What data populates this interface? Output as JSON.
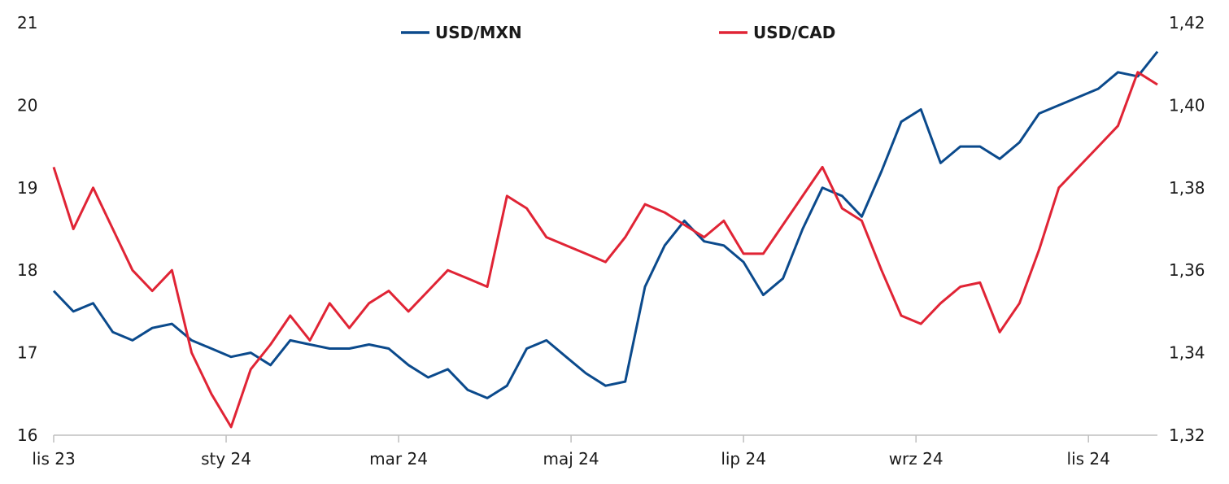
{
  "chart_data": {
    "type": "line",
    "title": "",
    "xlabel": "",
    "ylabel": "",
    "x_ticks": [
      "lis 23",
      "sty 24",
      "mar 24",
      "maj 24",
      "lip 24",
      "wrz 24",
      "lis 24"
    ],
    "y_left": {
      "ticks": [
        "16",
        "17",
        "18",
        "19",
        "20",
        "21"
      ],
      "range": [
        16,
        21
      ]
    },
    "y_right": {
      "ticks": [
        "1,32",
        "1,34",
        "1,36",
        "1,38",
        "1,40",
        "1,42"
      ],
      "range": [
        1.32,
        1.42
      ]
    },
    "grid": false,
    "legend_position": "top-center",
    "series": [
      {
        "name": "USD/MXN",
        "axis": "left",
        "color": "#0b4a8c",
        "x": [
          "2023-11-01",
          "2023-11-08",
          "2023-11-15",
          "2023-11-22",
          "2023-11-29",
          "2023-12-06",
          "2023-12-13",
          "2023-12-20",
          "2023-12-27",
          "2024-01-03",
          "2024-01-10",
          "2024-01-17",
          "2024-01-24",
          "2024-01-31",
          "2024-02-07",
          "2024-02-14",
          "2024-02-21",
          "2024-02-28",
          "2024-03-06",
          "2024-03-13",
          "2024-03-20",
          "2024-03-27",
          "2024-04-03",
          "2024-04-10",
          "2024-04-17",
          "2024-04-24",
          "2024-05-01",
          "2024-05-08",
          "2024-05-15",
          "2024-05-22",
          "2024-05-29",
          "2024-06-05",
          "2024-06-12",
          "2024-06-19",
          "2024-06-26",
          "2024-07-03",
          "2024-07-10",
          "2024-07-17",
          "2024-07-24",
          "2024-07-31",
          "2024-08-07",
          "2024-08-14",
          "2024-08-21",
          "2024-08-28",
          "2024-09-04",
          "2024-09-11",
          "2024-09-18",
          "2024-09-25",
          "2024-10-02",
          "2024-10-09",
          "2024-10-16",
          "2024-10-23",
          "2024-10-30",
          "2024-11-06",
          "2024-11-13",
          "2024-11-20",
          "2024-11-27"
        ],
        "values": [
          17.75,
          17.5,
          17.6,
          17.25,
          17.15,
          17.3,
          17.35,
          17.15,
          17.05,
          16.95,
          17.0,
          16.85,
          17.15,
          17.1,
          17.05,
          17.05,
          17.1,
          17.05,
          16.85,
          16.7,
          16.8,
          16.55,
          16.45,
          16.6,
          17.05,
          17.15,
          16.95,
          16.75,
          16.6,
          16.65,
          17.8,
          18.3,
          18.6,
          18.35,
          18.3,
          18.1,
          17.7,
          17.9,
          18.5,
          19.0,
          18.9,
          18.65,
          19.2,
          19.8,
          19.95,
          19.3,
          19.5,
          19.5,
          19.35,
          19.55,
          19.9,
          20.0,
          20.1,
          20.2,
          20.4,
          20.35,
          20.65
        ]
      },
      {
        "name": "USD/CAD",
        "axis": "right",
        "color": "#e02435",
        "x": [
          "2023-11-01",
          "2023-11-08",
          "2023-11-15",
          "2023-11-22",
          "2023-11-29",
          "2023-12-06",
          "2023-12-13",
          "2023-12-20",
          "2023-12-27",
          "2024-01-03",
          "2024-01-10",
          "2024-01-17",
          "2024-01-24",
          "2024-01-31",
          "2024-02-07",
          "2024-02-14",
          "2024-02-21",
          "2024-02-28",
          "2024-03-06",
          "2024-03-13",
          "2024-03-20",
          "2024-03-27",
          "2024-04-03",
          "2024-04-10",
          "2024-04-17",
          "2024-04-24",
          "2024-05-01",
          "2024-05-08",
          "2024-05-15",
          "2024-05-22",
          "2024-05-29",
          "2024-06-05",
          "2024-06-12",
          "2024-06-19",
          "2024-06-26",
          "2024-07-03",
          "2024-07-10",
          "2024-07-17",
          "2024-07-24",
          "2024-07-31",
          "2024-08-07",
          "2024-08-14",
          "2024-08-21",
          "2024-08-28",
          "2024-09-04",
          "2024-09-11",
          "2024-09-18",
          "2024-09-25",
          "2024-10-02",
          "2024-10-09",
          "2024-10-16",
          "2024-10-23",
          "2024-10-30",
          "2024-11-06",
          "2024-11-13",
          "2024-11-20",
          "2024-11-27"
        ],
        "values": [
          1.385,
          1.37,
          1.38,
          1.37,
          1.36,
          1.355,
          1.36,
          1.34,
          1.33,
          1.322,
          1.336,
          1.342,
          1.349,
          1.343,
          1.352,
          1.346,
          1.352,
          1.355,
          1.35,
          1.355,
          1.36,
          1.358,
          1.356,
          1.378,
          1.375,
          1.368,
          1.366,
          1.364,
          1.362,
          1.368,
          1.376,
          1.374,
          1.371,
          1.368,
          1.372,
          1.364,
          1.364,
          1.371,
          1.378,
          1.385,
          1.375,
          1.372,
          1.36,
          1.349,
          1.347,
          1.352,
          1.356,
          1.357,
          1.345,
          1.352,
          1.365,
          1.38,
          1.385,
          1.39,
          1.395,
          1.408,
          1.405
        ]
      }
    ]
  }
}
